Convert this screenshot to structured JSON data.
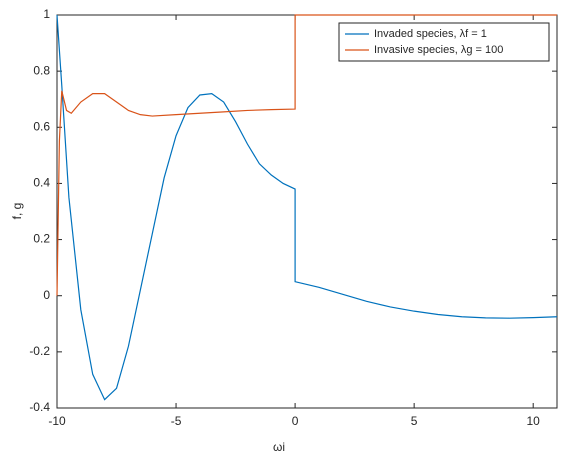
{
  "chart_data": {
    "type": "line",
    "xlabel": "ωi",
    "ylabel": "f, g",
    "xlim": [
      -10,
      11
    ],
    "ylim": [
      -0.4,
      1
    ],
    "xticks": [
      -10,
      -5,
      0,
      5,
      10
    ],
    "yticks": [
      -0.4,
      -0.2,
      0,
      0.2,
      0.4,
      0.6,
      0.8,
      1
    ],
    "legend": "top-right",
    "series": [
      {
        "name": "Invaded species, λf = 1",
        "color": "#0072bd",
        "x": [
          -10,
          -9.8,
          -9.5,
          -9,
          -8.5,
          -8,
          -7.5,
          -7,
          -6.5,
          -6,
          -5.5,
          -5,
          -4.5,
          -4,
          -3.5,
          -3,
          -2.5,
          -2,
          -1.5,
          -1,
          -0.5,
          0,
          0,
          1,
          2,
          3,
          4,
          5,
          6,
          7,
          8,
          9,
          10,
          11
        ],
        "values": [
          1.0,
          0.75,
          0.35,
          -0.05,
          -0.28,
          -0.37,
          -0.33,
          -0.18,
          0.02,
          0.22,
          0.42,
          0.57,
          0.67,
          0.715,
          0.72,
          0.69,
          0.62,
          0.54,
          0.47,
          0.43,
          0.4,
          0.38,
          0.05,
          0.03,
          0.005,
          -0.02,
          -0.04,
          -0.055,
          -0.067,
          -0.075,
          -0.079,
          -0.08,
          -0.078,
          -0.075
        ]
      },
      {
        "name": "Invasive species, λg = 100",
        "color": "#d95319",
        "x": [
          -10,
          -9.9,
          -9.8,
          -9.6,
          -9.4,
          -9,
          -8.5,
          -8,
          -7.5,
          -7,
          -6.5,
          -6,
          -5,
          -4,
          -3,
          -2,
          -1,
          0,
          0,
          11
        ],
        "values": [
          0,
          0.55,
          0.73,
          0.66,
          0.65,
          0.69,
          0.72,
          0.72,
          0.69,
          0.66,
          0.645,
          0.64,
          0.645,
          0.65,
          0.655,
          0.66,
          0.663,
          0.665,
          1,
          1
        ]
      }
    ]
  }
}
